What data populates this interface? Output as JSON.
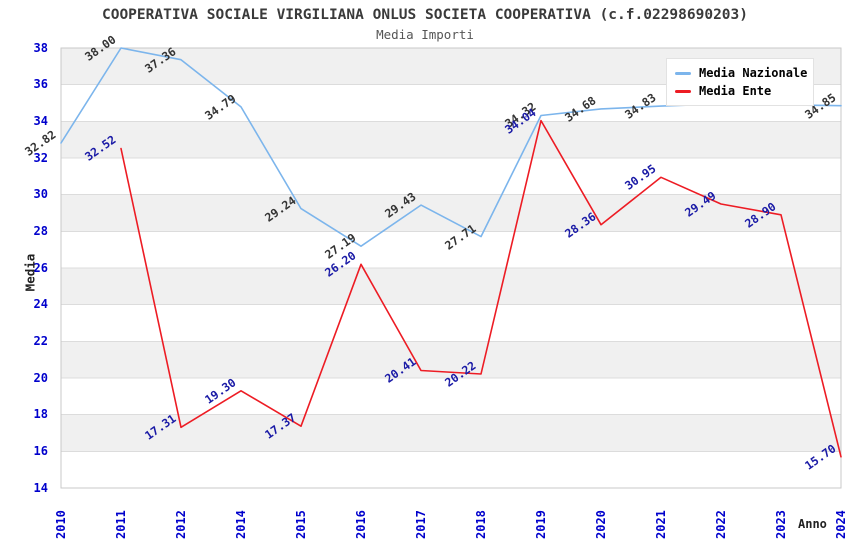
{
  "header": {
    "title": "COOPERATIVA SOCIALE VIRGILIANA ONLUS SOCIETA COOPERATIVA (c.f.02298690203)",
    "subtitle": "Media Importi"
  },
  "axes": {
    "y_title": "Media",
    "x_title": "Anno"
  },
  "legend": {
    "items": [
      {
        "label": "Media Nazionale",
        "color": "#7cb5ec"
      },
      {
        "label": "Media Ente",
        "color": "#ed1c24"
      }
    ]
  },
  "colors": {
    "band": "#f0f0f0",
    "gridline": "#dcdcdc",
    "plot_border": "#c9c9c9",
    "axis_tick_text": "#0000cc",
    "nazionale_line": "#7cb5ec",
    "nazionale_label": "#333333",
    "ente_line": "#ed1c24",
    "ente_label": "#1a1aa6"
  },
  "chart_data": {
    "type": "line",
    "title": "COOPERATIVA SOCIALE VIRGILIANA ONLUS SOCIETA COOPERATIVA (c.f.02298690203)",
    "subtitle": "Media Importi",
    "xlabel": "Anno",
    "ylabel": "Media",
    "ylim": [
      14,
      38
    ],
    "ytick_step": 2,
    "grid": true,
    "alternating_bands": true,
    "legend_position": "top-right",
    "categories": [
      "2010",
      "2011",
      "2012",
      "2014",
      "2015",
      "2016",
      "2017",
      "2018",
      "2019",
      "2020",
      "2021",
      "2022",
      "2023",
      "2024"
    ],
    "series": [
      {
        "name": "Media Nazionale",
        "color": "#7cb5ec",
        "label_color": "#333333",
        "values": [
          32.82,
          38.0,
          37.36,
          34.79,
          29.24,
          27.19,
          29.43,
          27.71,
          34.32,
          34.68,
          34.83,
          34.95,
          34.9,
          34.85
        ],
        "labels": [
          "32.82",
          "38.00",
          "37.36",
          "34.79",
          "29.24",
          "27.19",
          "29.43",
          "27.71",
          "34.32",
          "34.68",
          "34.83",
          null,
          null,
          "34.85"
        ]
      },
      {
        "name": "Media Ente",
        "color": "#ed1c24",
        "label_color": "#1a1aa6",
        "values": [
          null,
          32.52,
          17.31,
          19.3,
          17.37,
          26.2,
          20.41,
          20.22,
          34.04,
          28.36,
          30.95,
          29.49,
          28.9,
          15.7
        ],
        "labels": [
          null,
          "32.52",
          "17.31",
          "19.30",
          "17.37",
          "26.20",
          "20.41",
          "20.22",
          "34.04",
          "28.36",
          "30.95",
          "29.49",
          "28.90",
          "15.70"
        ]
      }
    ]
  }
}
